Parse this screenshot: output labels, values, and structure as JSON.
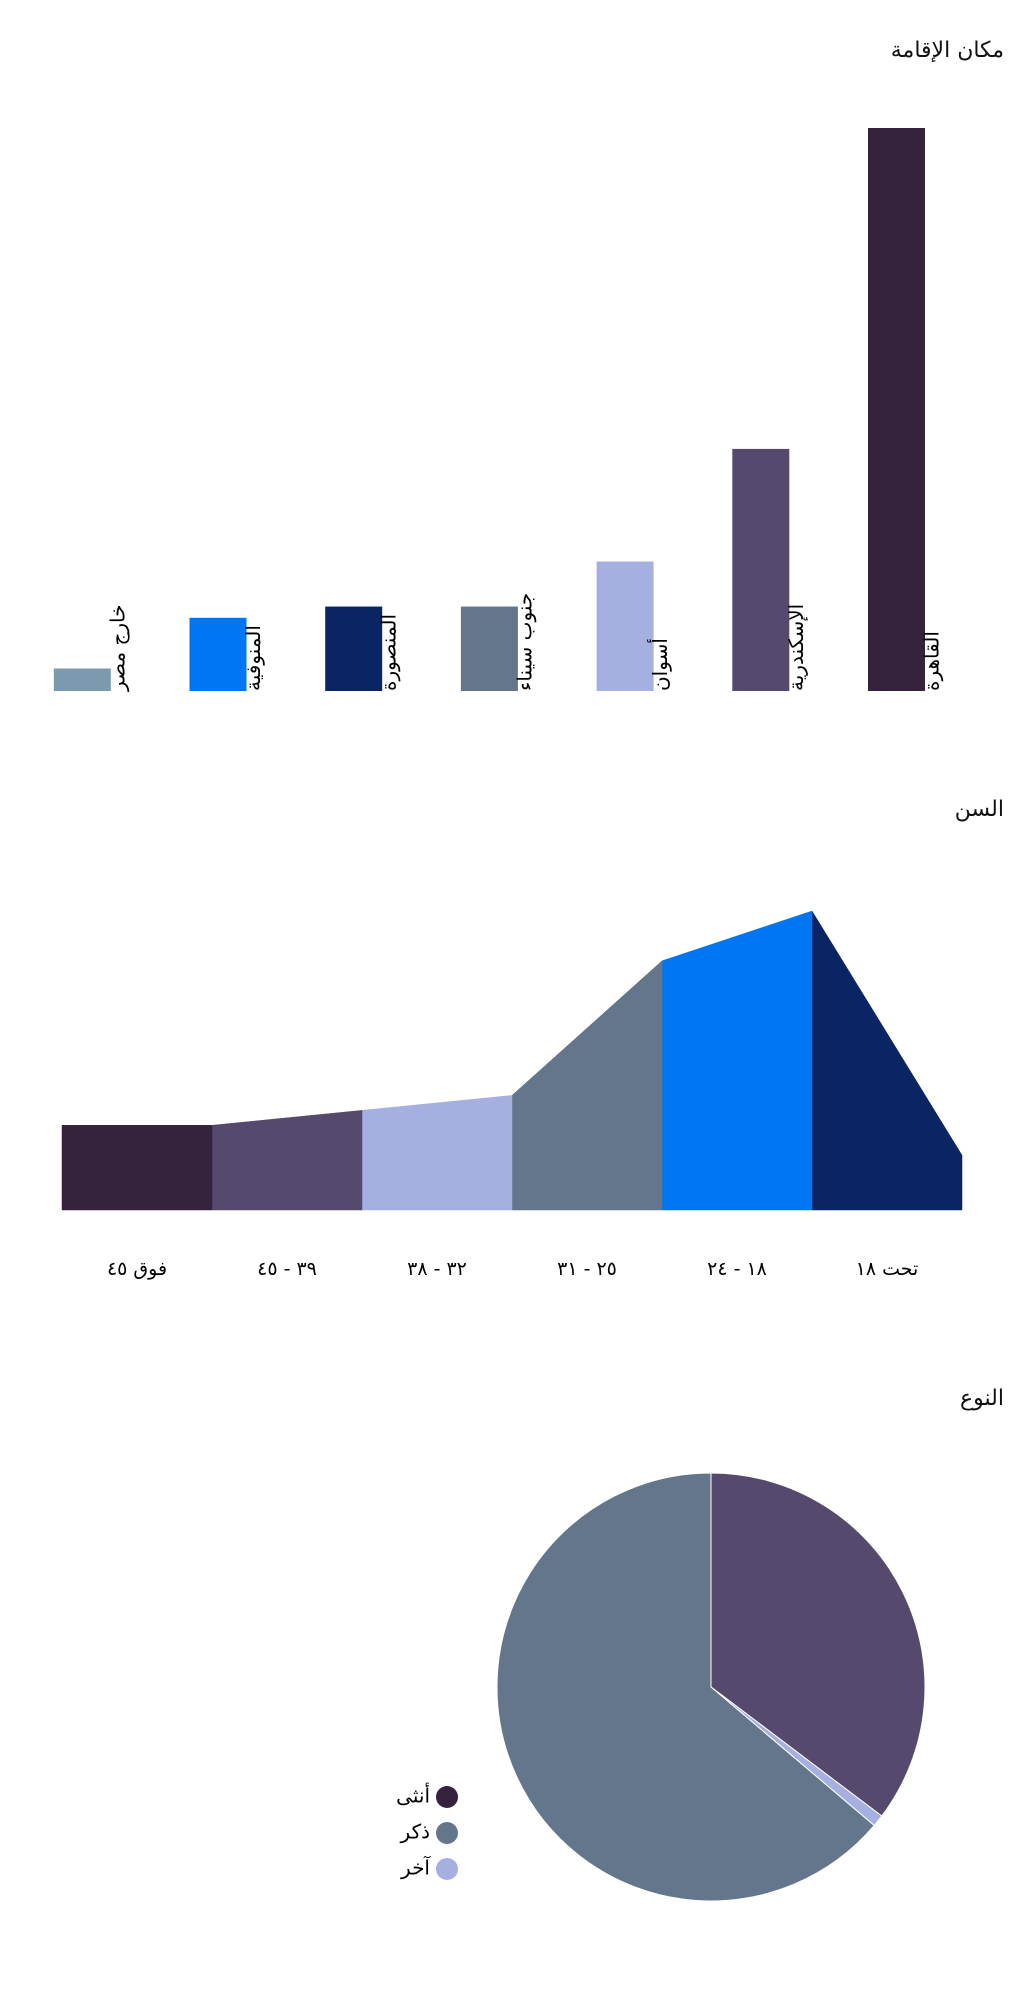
{
  "chart_data": [
    {
      "type": "bar",
      "title": "مكان الإقامة",
      "categories": [
        "القاهرة",
        "الإسكندرية",
        "أسوان",
        "جنوب سيناء",
        "المنصورة",
        "المنوفية",
        "خارج مصر"
      ],
      "values": [
        100,
        43,
        23,
        15,
        15,
        13,
        4
      ],
      "colors": [
        "#35233e",
        "#55496e",
        "#a6b0e0",
        "#64768c",
        "#0b2463",
        "#0076f2",
        "#7b9ab0"
      ],
      "ylim": [
        0,
        100
      ],
      "grid": false
    },
    {
      "type": "area",
      "title": "السن",
      "categories": [
        "تحت ١٨",
        "١٨ - ٢٤",
        "٢٥ - ٣١",
        "٣٢ - ٣٨",
        "٣٩ - ٤٥",
        "فوق ٤٥"
      ],
      "values": [
        [
          55,
          300
        ],
        [
          300,
          250
        ],
        [
          250,
          115
        ],
        [
          115,
          100
        ],
        [
          100,
          85
        ],
        [
          85,
          85
        ]
      ],
      "colors": [
        "#0b2463",
        "#0076f2",
        "#64768c",
        "#a6b0e0",
        "#55496e",
        "#35233e"
      ],
      "ylim": [
        0,
        300
      ],
      "grid": false
    },
    {
      "type": "pie",
      "title": "النوع",
      "legend_position": "bottom-left",
      "series": [
        {
          "name": "أنثى",
          "value": 35.3,
          "color": "#55496e"
        },
        {
          "name": "آخر",
          "value": 0.9,
          "color": "#a6b0e0"
        },
        {
          "name": "ذكر",
          "value": 63.8,
          "color": "#64768c"
        }
      ],
      "legend": [
        {
          "name": "أنثى",
          "color": "#35233e"
        },
        {
          "name": "ذكر",
          "color": "#64768c"
        },
        {
          "name": "آخر",
          "color": "#a6b0e0"
        }
      ]
    }
  ]
}
